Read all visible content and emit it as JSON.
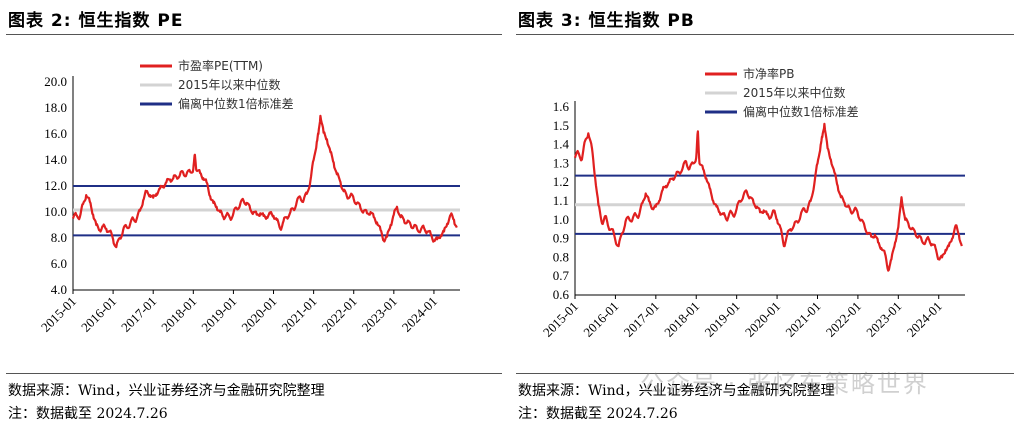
{
  "figures": [
    {
      "title": "图表 2:  恒生指数 PE",
      "source": "数据来源：Wind，兴业证券经济与金融研究院整理",
      "note": "注：数据截至 2024.7.26"
    },
    {
      "title": "图表 3:  恒生指数 PB",
      "source": "数据来源：Wind，兴业证券经济与金融研究院整理",
      "note": "注：数据截至 2024.7.26"
    }
  ],
  "watermark": "公众号 · 张忆东策略世界",
  "chart_data": [
    {
      "type": "line",
      "title": "恒生指数 PE",
      "ylim": [
        4.0,
        20.0
      ],
      "ytick_labels": [
        "4.0",
        "6.0",
        "8.0",
        "10.0",
        "12.0",
        "14.0",
        "16.0",
        "18.0",
        "20.0"
      ],
      "xlim": [
        2015.0,
        2024.65
      ],
      "xtick_labels": [
        "2015-01",
        "2016-01",
        "2017-01",
        "2018-01",
        "2019-01",
        "2020-01",
        "2021-01",
        "2022-01",
        "2023-01",
        "2024-01"
      ],
      "legend_position": "top",
      "series": [
        {
          "name": "市盈率PE(TTM)",
          "color": "#e02020",
          "x": [
            2015.0,
            2015.08,
            2015.17,
            2015.25,
            2015.33,
            2015.42,
            2015.5,
            2015.58,
            2015.67,
            2015.75,
            2015.83,
            2015.92,
            2016.0,
            2016.08,
            2016.17,
            2016.25,
            2016.33,
            2016.42,
            2016.5,
            2016.58,
            2016.67,
            2016.75,
            2016.83,
            2016.92,
            2017.0,
            2017.08,
            2017.17,
            2017.25,
            2017.33,
            2017.42,
            2017.5,
            2017.58,
            2017.67,
            2017.75,
            2017.83,
            2017.92,
            2018.0,
            2018.04,
            2018.08,
            2018.17,
            2018.25,
            2018.33,
            2018.42,
            2018.5,
            2018.58,
            2018.67,
            2018.75,
            2018.83,
            2018.92,
            2019.0,
            2019.08,
            2019.17,
            2019.25,
            2019.33,
            2019.42,
            2019.5,
            2019.58,
            2019.67,
            2019.75,
            2019.83,
            2019.92,
            2020.0,
            2020.08,
            2020.17,
            2020.25,
            2020.33,
            2020.42,
            2020.5,
            2020.58,
            2020.67,
            2020.75,
            2020.83,
            2020.92,
            2021.0,
            2021.08,
            2021.12,
            2021.17,
            2021.25,
            2021.33,
            2021.42,
            2021.5,
            2021.58,
            2021.67,
            2021.75,
            2021.83,
            2021.92,
            2022.0,
            2022.08,
            2022.17,
            2022.25,
            2022.33,
            2022.42,
            2022.5,
            2022.58,
            2022.67,
            2022.75,
            2022.83,
            2022.92,
            2023.0,
            2023.08,
            2023.17,
            2023.25,
            2023.33,
            2023.42,
            2023.5,
            2023.58,
            2023.67,
            2023.75,
            2023.83,
            2023.92,
            2024.0,
            2024.08,
            2024.17,
            2024.25,
            2024.33,
            2024.42,
            2024.5,
            2024.57
          ],
          "y": [
            9.5,
            9.8,
            9.6,
            10.6,
            11.3,
            10.8,
            9.8,
            9.0,
            8.6,
            8.9,
            8.7,
            8.5,
            7.9,
            7.3,
            8.0,
            8.6,
            8.9,
            9.0,
            9.5,
            9.4,
            10.1,
            10.9,
            11.6,
            11.3,
            11.1,
            11.4,
            11.8,
            12.0,
            12.3,
            12.5,
            12.6,
            12.7,
            12.9,
            13.0,
            12.9,
            13.1,
            13.3,
            14.4,
            13.2,
            13.0,
            12.6,
            12.3,
            11.2,
            10.7,
            10.4,
            10.0,
            9.6,
            9.8,
            9.5,
            9.9,
            10.3,
            10.6,
            10.9,
            10.7,
            10.2,
            10.0,
            9.8,
            9.9,
            9.7,
            9.6,
            9.9,
            9.7,
            9.4,
            8.7,
            9.3,
            9.6,
            10.0,
            10.2,
            10.8,
            11.1,
            10.9,
            11.4,
            12.4,
            14.0,
            15.4,
            16.0,
            17.4,
            16.1,
            15.6,
            14.6,
            13.8,
            12.9,
            12.3,
            11.6,
            11.2,
            11.3,
            11.0,
            10.7,
            10.3,
            10.1,
            9.9,
            10.0,
            9.6,
            9.2,
            8.6,
            7.8,
            8.1,
            9.0,
            9.8,
            10.4,
            9.6,
            9.4,
            9.2,
            9.0,
            8.9,
            8.7,
            8.6,
            8.8,
            8.5,
            8.3,
            7.8,
            7.9,
            8.2,
            8.5,
            9.1,
            9.8,
            9.4,
            8.8
          ]
        },
        {
          "name": "2015年以来中位数",
          "color": "#d3d3d3",
          "value": 10.15
        },
        {
          "name": "偏离中位数1倍标准差",
          "color": "#1f2f86",
          "values": [
            12.0,
            8.2
          ]
        }
      ]
    },
    {
      "type": "line",
      "title": "恒生指数 PB",
      "ylim": [
        0.6,
        1.6
      ],
      "ytick_labels": [
        "0.6",
        "0.7",
        "0.8",
        "0.9",
        "1.0",
        "1.1",
        "1.2",
        "1.3",
        "1.4",
        "1.5",
        "1.6"
      ],
      "xlim": [
        2015.0,
        2024.65
      ],
      "xtick_labels": [
        "2015-01",
        "2016-01",
        "2017-01",
        "2018-01",
        "2019-01",
        "2020-01",
        "2021-01",
        "2022-01",
        "2023-01",
        "2024-01"
      ],
      "legend_position": "top",
      "series": [
        {
          "name": "市净率PB",
          "color": "#e02020",
          "x": [
            2015.0,
            2015.08,
            2015.17,
            2015.25,
            2015.33,
            2015.42,
            2015.5,
            2015.58,
            2015.67,
            2015.75,
            2015.83,
            2015.92,
            2016.0,
            2016.08,
            2016.17,
            2016.25,
            2016.33,
            2016.42,
            2016.5,
            2016.58,
            2016.67,
            2016.75,
            2016.83,
            2016.92,
            2017.0,
            2017.08,
            2017.17,
            2017.25,
            2017.33,
            2017.42,
            2017.5,
            2017.58,
            2017.67,
            2017.75,
            2017.83,
            2017.92,
            2018.0,
            2018.04,
            2018.08,
            2018.17,
            2018.25,
            2018.33,
            2018.42,
            2018.5,
            2018.58,
            2018.67,
            2018.75,
            2018.83,
            2018.92,
            2019.0,
            2019.08,
            2019.17,
            2019.25,
            2019.33,
            2019.42,
            2019.5,
            2019.58,
            2019.67,
            2019.75,
            2019.83,
            2019.92,
            2020.0,
            2020.08,
            2020.17,
            2020.25,
            2020.33,
            2020.42,
            2020.5,
            2020.58,
            2020.67,
            2020.75,
            2020.83,
            2020.92,
            2021.0,
            2021.08,
            2021.12,
            2021.17,
            2021.25,
            2021.33,
            2021.42,
            2021.5,
            2021.58,
            2021.67,
            2021.75,
            2021.83,
            2021.92,
            2022.0,
            2022.08,
            2022.17,
            2022.25,
            2022.33,
            2022.42,
            2022.5,
            2022.58,
            2022.67,
            2022.75,
            2022.83,
            2022.92,
            2023.0,
            2023.08,
            2023.17,
            2023.25,
            2023.33,
            2023.42,
            2023.5,
            2023.58,
            2023.67,
            2023.75,
            2023.83,
            2023.92,
            2024.0,
            2024.08,
            2024.17,
            2024.25,
            2024.33,
            2024.42,
            2024.5,
            2024.57
          ],
          "y": [
            1.33,
            1.36,
            1.32,
            1.42,
            1.46,
            1.38,
            1.22,
            1.08,
            0.98,
            1.02,
            0.96,
            0.95,
            0.89,
            0.86,
            0.93,
            0.99,
            1.01,
            1.0,
            1.03,
            1.02,
            1.09,
            1.14,
            1.1,
            1.06,
            1.07,
            1.1,
            1.16,
            1.18,
            1.2,
            1.22,
            1.24,
            1.25,
            1.28,
            1.31,
            1.27,
            1.3,
            1.33,
            1.47,
            1.3,
            1.27,
            1.22,
            1.17,
            1.1,
            1.07,
            1.04,
            1.03,
            1.0,
            1.04,
            1.02,
            1.06,
            1.1,
            1.13,
            1.15,
            1.12,
            1.09,
            1.07,
            1.04,
            1.05,
            1.03,
            1.01,
            1.05,
            1.0,
            0.96,
            0.86,
            0.92,
            0.95,
            0.97,
            0.99,
            1.02,
            1.06,
            1.05,
            1.1,
            1.19,
            1.3,
            1.4,
            1.44,
            1.51,
            1.38,
            1.32,
            1.25,
            1.18,
            1.12,
            1.09,
            1.07,
            1.04,
            1.06,
            1.03,
            1.0,
            0.96,
            0.93,
            0.91,
            0.92,
            0.88,
            0.85,
            0.82,
            0.73,
            0.79,
            0.88,
            0.96,
            1.12,
            1.0,
            0.98,
            0.95,
            0.93,
            0.91,
            0.89,
            0.88,
            0.9,
            0.87,
            0.85,
            0.79,
            0.8,
            0.84,
            0.86,
            0.9,
            0.97,
            0.92,
            0.86
          ]
        },
        {
          "name": "2015年以来中位数",
          "color": "#d3d3d3",
          "value": 1.08
        },
        {
          "name": "偏离中位数1倍标准差",
          "color": "#1f2f86",
          "values": [
            1.235,
            0.925
          ]
        }
      ]
    }
  ]
}
